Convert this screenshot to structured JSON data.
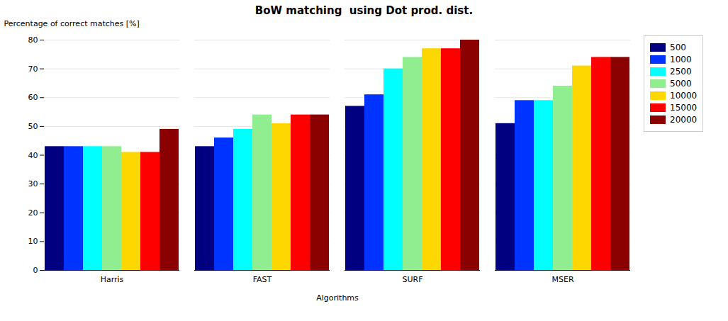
{
  "chart_data": {
    "type": "bar",
    "title": "BoW matching  using Dot prod. dist.",
    "xlabel": "Algorithms",
    "ylabel": "Percentage of correct matches [%]",
    "categories": [
      "Harris",
      "FAST",
      "SURF",
      "MSER"
    ],
    "series": [
      {
        "name": "500",
        "color": "#000080",
        "values": [
          43,
          43,
          57,
          51
        ]
      },
      {
        "name": "1000",
        "color": "#0033FF",
        "values": [
          43,
          46,
          61,
          59
        ]
      },
      {
        "name": "2500",
        "color": "#00FFFF",
        "values": [
          43,
          49,
          70,
          59
        ]
      },
      {
        "name": "5000",
        "color": "#90EE90",
        "values": [
          43,
          54,
          74,
          64
        ]
      },
      {
        "name": "10000",
        "color": "#FFD700",
        "values": [
          41,
          51,
          77,
          71
        ]
      },
      {
        "name": "15000",
        "color": "#FF0000",
        "values": [
          41,
          54,
          77,
          74
        ]
      },
      {
        "name": "20000",
        "color": "#8B0000",
        "values": [
          49,
          54,
          80,
          74
        ]
      }
    ],
    "ylim": [
      0,
      80
    ],
    "yticks": [
      0,
      10,
      20,
      30,
      40,
      50,
      60,
      70,
      80
    ],
    "grid": true,
    "legend": "right"
  }
}
